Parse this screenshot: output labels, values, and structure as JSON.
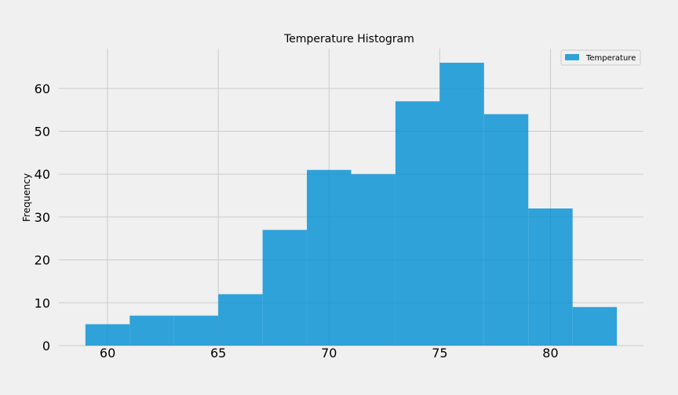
{
  "chart_data": {
    "type": "bar",
    "title": "Temperature Histogram",
    "xlabel": "",
    "ylabel": "Frequency",
    "xlim": [
      57.8,
      84.2
    ],
    "ylim": [
      0,
      69.3
    ],
    "grid": true,
    "legend_position": "top-right",
    "x_ticks": [
      60,
      65,
      70,
      75,
      80
    ],
    "y_ticks": [
      0,
      10,
      20,
      30,
      40,
      50,
      60
    ],
    "series": [
      {
        "name": "Temperature",
        "color": "#008fd5",
        "bins": [
          {
            "start": 59,
            "end": 61,
            "count": 5
          },
          {
            "start": 61,
            "end": 63,
            "count": 7
          },
          {
            "start": 63,
            "end": 65,
            "count": 7
          },
          {
            "start": 65,
            "end": 67,
            "count": 12
          },
          {
            "start": 67,
            "end": 69,
            "count": 27
          },
          {
            "start": 69,
            "end": 71,
            "count": 41
          },
          {
            "start": 71,
            "end": 73,
            "count": 40
          },
          {
            "start": 73,
            "end": 75,
            "count": 57
          },
          {
            "start": 75,
            "end": 77,
            "count": 66
          },
          {
            "start": 77,
            "end": 79,
            "count": 54
          },
          {
            "start": 79,
            "end": 81,
            "count": 32
          },
          {
            "start": 81,
            "end": 83,
            "count": 9
          }
        ]
      }
    ]
  }
}
